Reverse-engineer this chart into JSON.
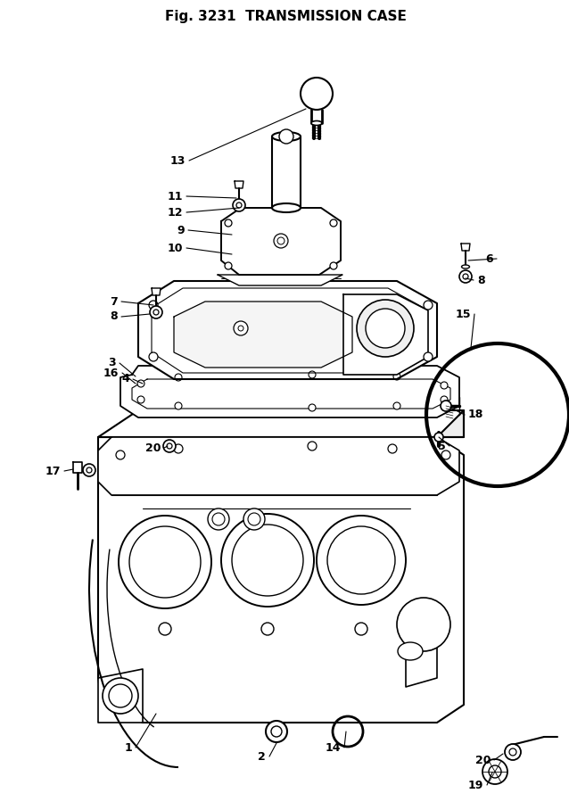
{
  "title": "Fig. 3231  TRANSMISSION CASE",
  "bg_color": "#ffffff",
  "lc": "#000000",
  "lw_main": 1.2,
  "lw_thin": 0.7,
  "lw_oring": 2.8,
  "label_fs": 9
}
